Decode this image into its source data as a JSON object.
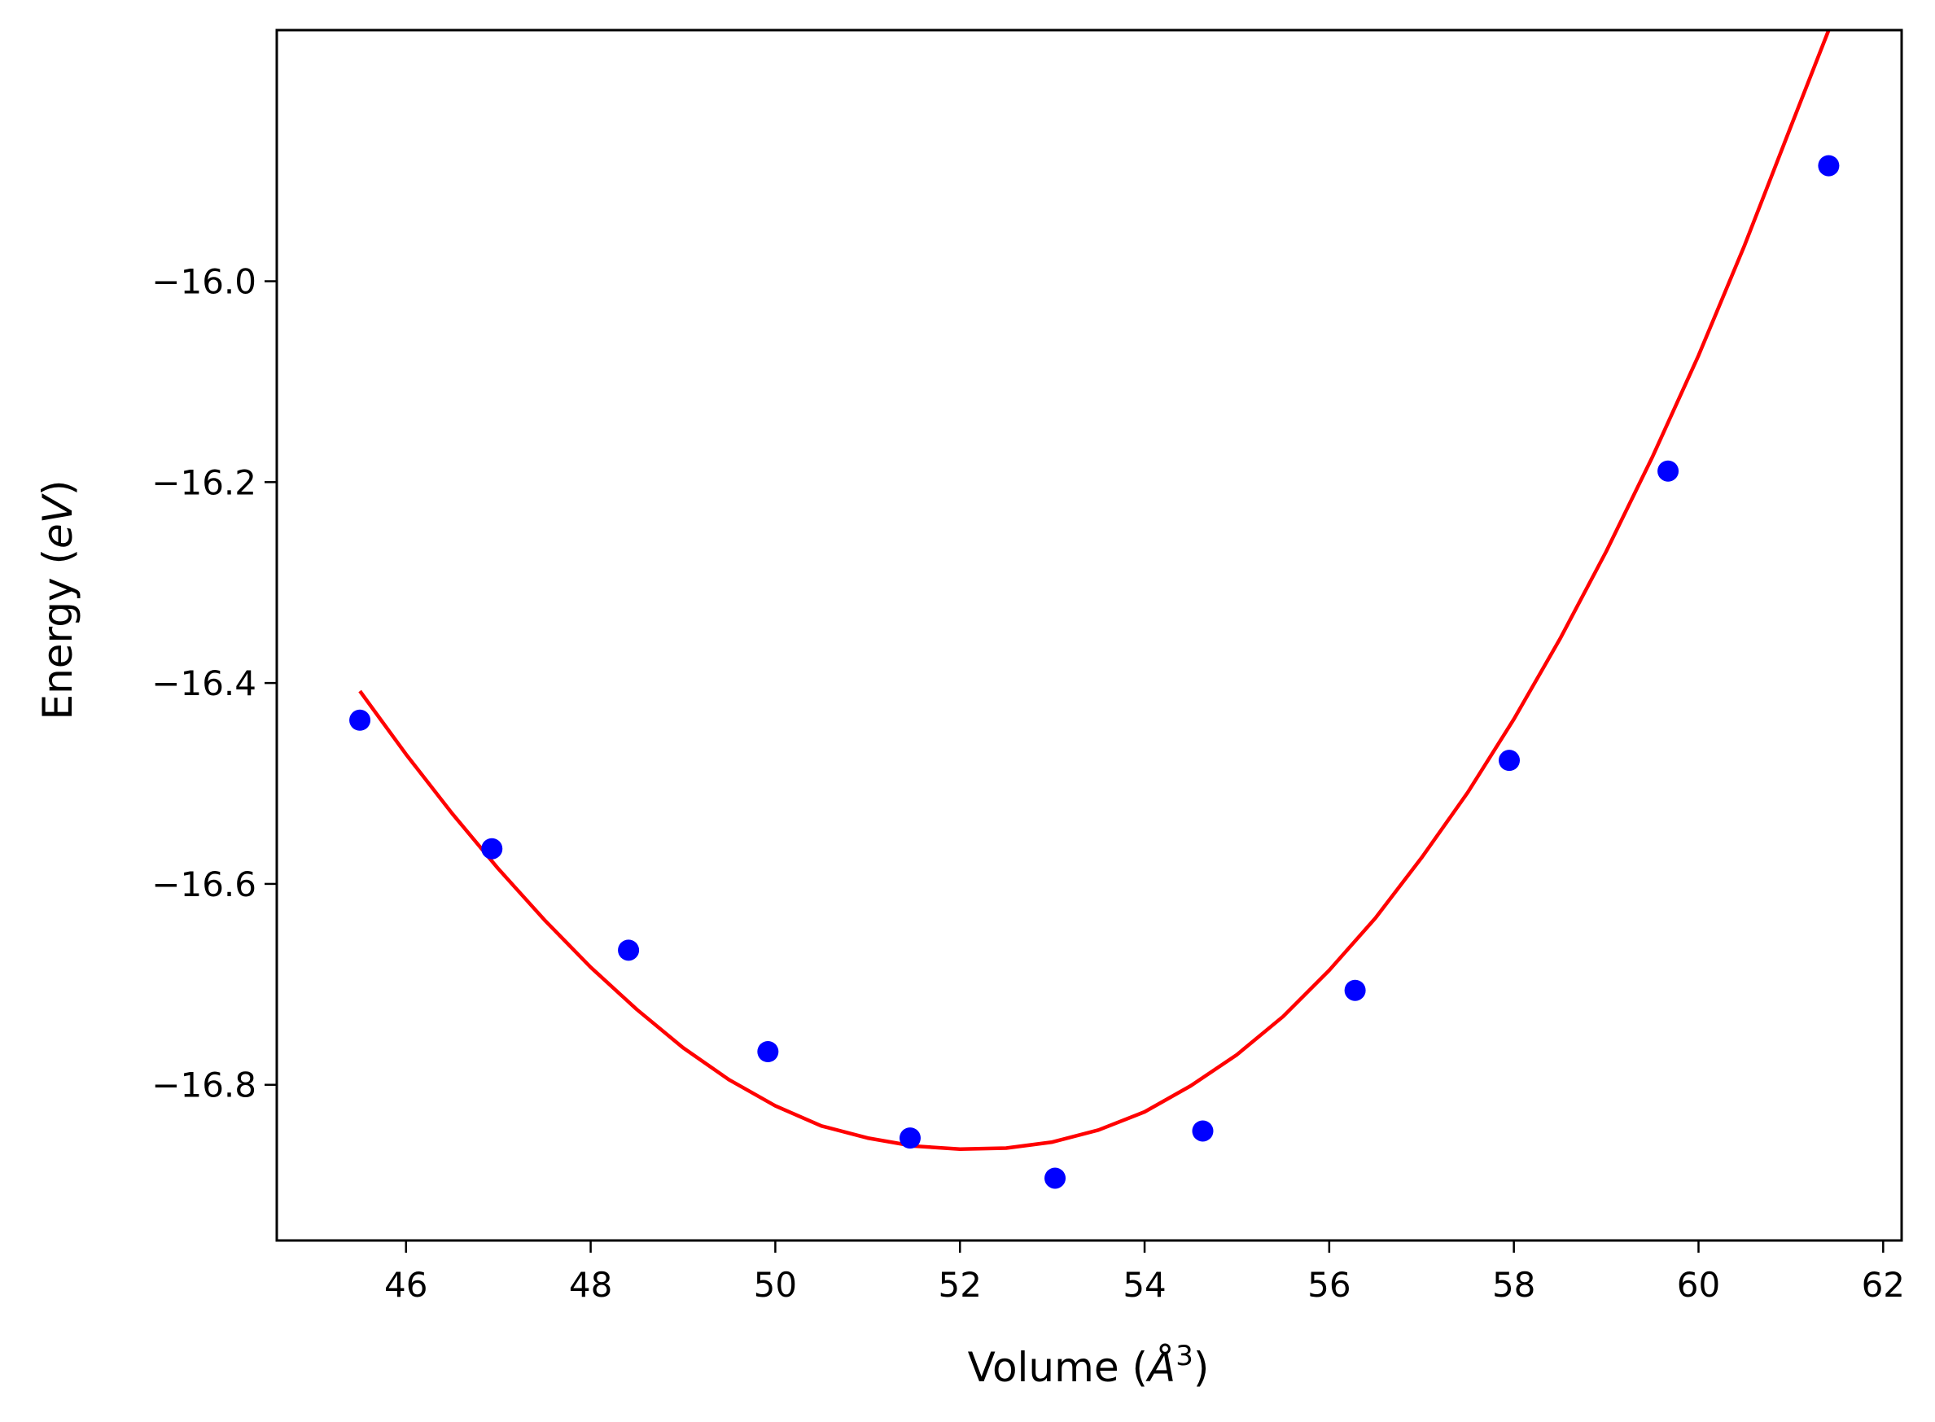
{
  "chart_data": {
    "type": "scatter",
    "xlabel": "Volume (Å³)",
    "xlabel_parts": {
      "prefix": "Volume (",
      "unit": "Å",
      "exponent": "3",
      "suffix": ")"
    },
    "ylabel": "Energy (eV)",
    "ylabel_parts": {
      "prefix": "Energy (",
      "unit": "eV",
      "suffix": ")"
    },
    "xlim": [
      44.6,
      62.2
    ],
    "ylim": [
      -16.955,
      -15.75
    ],
    "x_ticks": [
      46,
      48,
      50,
      52,
      54,
      56,
      58,
      60,
      62
    ],
    "y_ticks": [
      -16.8,
      -16.6,
      -16.4,
      -16.2,
      -16.0
    ],
    "y_tick_labels": [
      "−16.8",
      "−16.6",
      "−16.4",
      "−16.2",
      "−16.0"
    ],
    "grid": false,
    "series": [
      {
        "kind": "points",
        "color": "#0000ff",
        "x": [
          45.5,
          46.93,
          48.41,
          49.92,
          51.46,
          53.03,
          54.63,
          56.28,
          57.95,
          59.67,
          61.41
        ],
        "y": [
          -16.437,
          -16.565,
          -16.666,
          -16.767,
          -16.853,
          -16.893,
          -16.846,
          -16.706,
          -16.477,
          -16.189,
          -15.885
        ]
      },
      {
        "kind": "fit-curve",
        "color": "#ff0000",
        "x_range": [
          45.5,
          61.41
        ],
        "x": [
          45.5,
          46.0,
          46.5,
          47.0,
          47.5,
          48.0,
          48.5,
          49.0,
          49.5,
          50.0,
          50.5,
          51.0,
          51.5,
          52.0,
          52.5,
          53.0,
          53.5,
          54.0,
          54.5,
          55.0,
          55.5,
          56.0,
          56.5,
          57.0,
          57.5,
          58.0,
          58.5,
          59.0,
          59.5,
          60.0,
          60.5,
          61.0,
          61.41
        ],
        "y": [
          -16.408,
          -16.471,
          -16.53,
          -16.585,
          -16.636,
          -16.683,
          -16.725,
          -16.763,
          -16.795,
          -16.821,
          -16.841,
          -16.853,
          -16.861,
          -16.864,
          -16.863,
          -16.857,
          -16.845,
          -16.827,
          -16.801,
          -16.77,
          -16.732,
          -16.686,
          -16.634,
          -16.574,
          -16.509,
          -16.436,
          -16.356,
          -16.269,
          -16.175,
          -16.074,
          -15.964,
          -15.846,
          -15.75
        ]
      }
    ]
  }
}
